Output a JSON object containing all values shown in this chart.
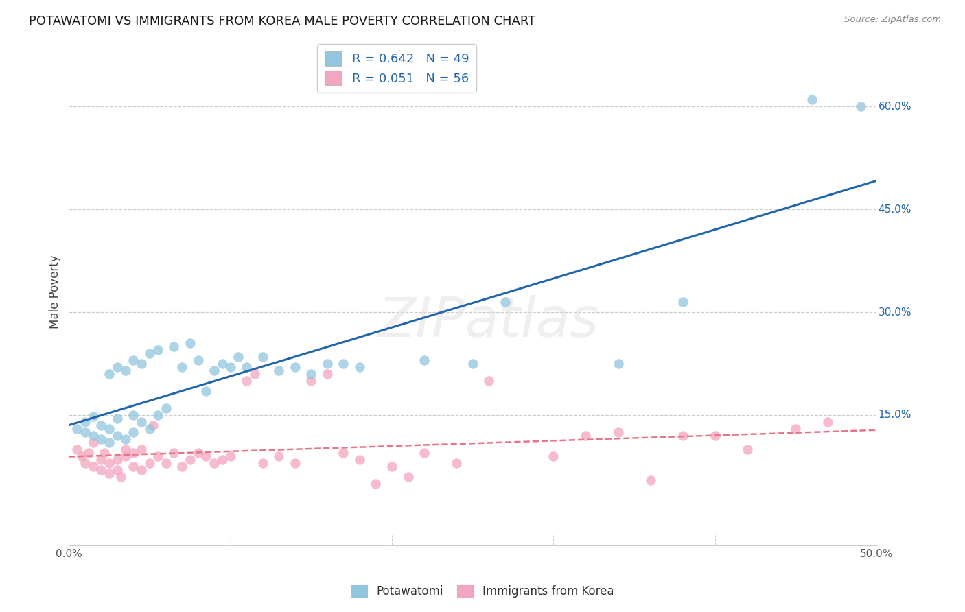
{
  "title": "POTAWATOMI VS IMMIGRANTS FROM KOREA MALE POVERTY CORRELATION CHART",
  "source": "Source: ZipAtlas.com",
  "ylabel": "Male Poverty",
  "right_yticks": [
    "60.0%",
    "45.0%",
    "30.0%",
    "15.0%"
  ],
  "right_ytick_vals": [
    0.6,
    0.45,
    0.3,
    0.15
  ],
  "xlim": [
    0.0,
    0.5
  ],
  "ylim": [
    -0.04,
    0.7
  ],
  "blue_R": "0.642",
  "blue_N": "49",
  "pink_R": "0.051",
  "pink_N": "56",
  "blue_color": "#92c5de",
  "pink_color": "#f4a6be",
  "blue_line_color": "#2166ac",
  "pink_line_color": "#e8748a",
  "grid_color": "#cccccc",
  "watermark": "ZIPatlas",
  "blue_x": [
    0.005,
    0.01,
    0.01,
    0.015,
    0.015,
    0.02,
    0.02,
    0.025,
    0.025,
    0.025,
    0.03,
    0.03,
    0.03,
    0.035,
    0.035,
    0.04,
    0.04,
    0.04,
    0.045,
    0.045,
    0.05,
    0.05,
    0.055,
    0.055,
    0.06,
    0.065,
    0.07,
    0.075,
    0.08,
    0.085,
    0.09,
    0.095,
    0.1,
    0.105,
    0.11,
    0.12,
    0.13,
    0.14,
    0.15,
    0.16,
    0.17,
    0.18,
    0.22,
    0.25,
    0.27,
    0.34,
    0.38,
    0.46,
    0.49
  ],
  "blue_y": [
    0.13,
    0.125,
    0.14,
    0.12,
    0.148,
    0.115,
    0.135,
    0.11,
    0.13,
    0.21,
    0.12,
    0.145,
    0.22,
    0.115,
    0.215,
    0.125,
    0.15,
    0.23,
    0.14,
    0.225,
    0.13,
    0.24,
    0.15,
    0.245,
    0.16,
    0.25,
    0.22,
    0.255,
    0.23,
    0.185,
    0.215,
    0.225,
    0.22,
    0.235,
    0.22,
    0.235,
    0.215,
    0.22,
    0.21,
    0.225,
    0.225,
    0.22,
    0.23,
    0.225,
    0.315,
    0.225,
    0.315,
    0.61,
    0.6
  ],
  "pink_x": [
    0.005,
    0.008,
    0.01,
    0.012,
    0.015,
    0.015,
    0.02,
    0.02,
    0.022,
    0.025,
    0.025,
    0.03,
    0.03,
    0.032,
    0.035,
    0.035,
    0.04,
    0.04,
    0.045,
    0.045,
    0.05,
    0.052,
    0.055,
    0.06,
    0.065,
    0.07,
    0.075,
    0.08,
    0.085,
    0.09,
    0.095,
    0.1,
    0.11,
    0.115,
    0.12,
    0.13,
    0.14,
    0.15,
    0.16,
    0.17,
    0.18,
    0.19,
    0.2,
    0.21,
    0.22,
    0.24,
    0.26,
    0.3,
    0.32,
    0.34,
    0.36,
    0.38,
    0.4,
    0.42,
    0.45,
    0.47
  ],
  "pink_y": [
    0.1,
    0.09,
    0.08,
    0.095,
    0.075,
    0.11,
    0.085,
    0.07,
    0.095,
    0.065,
    0.08,
    0.07,
    0.085,
    0.06,
    0.09,
    0.1,
    0.075,
    0.095,
    0.07,
    0.1,
    0.08,
    0.135,
    0.09,
    0.08,
    0.095,
    0.075,
    0.085,
    0.095,
    0.09,
    0.08,
    0.085,
    0.09,
    0.2,
    0.21,
    0.08,
    0.09,
    0.08,
    0.2,
    0.21,
    0.095,
    0.085,
    0.05,
    0.075,
    0.06,
    0.095,
    0.08,
    0.2,
    0.09,
    0.12,
    0.125,
    0.055,
    0.12,
    0.12,
    0.1,
    0.13,
    0.14
  ],
  "legend_label_blue": "R = 0.642   N = 49",
  "legend_label_pink": "R = 0.051   N = 56"
}
